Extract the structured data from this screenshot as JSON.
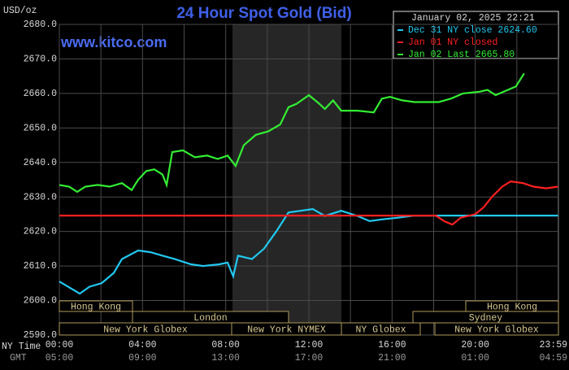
{
  "chart_data": {
    "type": "line",
    "title": "24 Hour Spot Gold (Bid)",
    "y_unit": "USD/oz",
    "timestamp": "January 02, 2025 22:21",
    "watermark": "www.kitco.com",
    "x_axis_label": "NY Time",
    "x2_axis_label": "GMT",
    "xlim": [
      0,
      24
    ],
    "ylim": [
      2590,
      2680
    ],
    "yticks": [
      {
        "value": 2590,
        "label": "2590.0"
      },
      {
        "value": 2600,
        "label": "2600.0"
      },
      {
        "value": 2610,
        "label": "2610.0"
      },
      {
        "value": 2620,
        "label": "2620.0"
      },
      {
        "value": 2630,
        "label": "2630.0"
      },
      {
        "value": 2640,
        "label": "2640.0"
      },
      {
        "value": 2650,
        "label": "2650.0"
      },
      {
        "value": 2660,
        "label": "2660.0"
      },
      {
        "value": 2670,
        "label": "2670.0"
      },
      {
        "value": 2680,
        "label": "2680.0"
      }
    ],
    "xticks": [
      {
        "value": 0,
        "label": "00:00"
      },
      {
        "value": 4,
        "label": "04:00"
      },
      {
        "value": 8,
        "label": "08:00"
      },
      {
        "value": 12,
        "label": "12:00"
      },
      {
        "value": 16,
        "label": "16:00"
      },
      {
        "value": 20,
        "label": "20:00"
      },
      {
        "value": 23.98,
        "label": "23:59"
      }
    ],
    "x2ticks": [
      {
        "value": 0,
        "label": "05:00"
      },
      {
        "value": 4,
        "label": "09:00"
      },
      {
        "value": 8,
        "label": "13:00"
      },
      {
        "value": 12,
        "label": "17:00"
      },
      {
        "value": 16,
        "label": "21:00"
      },
      {
        "value": 20,
        "label": "01:00"
      },
      {
        "value": 23.98,
        "label": "04:59"
      }
    ],
    "xminor": [
      2,
      6,
      10,
      14,
      18,
      22
    ],
    "grid": true,
    "sessions": [
      [
        "Hong Kong",
        "Hong Kong"
      ],
      [
        "London",
        "Sydney"
      ],
      [
        "New York Globex",
        "New York NYMEX",
        "NY Globex",
        "New York Globex"
      ]
    ],
    "series": [
      {
        "name": "Dec 31 NY close 2624.60",
        "color": "#22c8f0",
        "x": [
          0,
          0.98,
          1.45,
          2.03,
          2.62,
          3.01,
          3.79,
          4.38,
          4.96,
          5.55,
          6.33,
          6.91,
          7.7,
          8.09,
          8.36,
          8.59,
          9.26,
          9.84,
          10.43,
          11.02,
          11.6,
          12.19,
          12.77,
          13.55,
          14.34,
          14.92,
          15.51,
          16.29,
          17.07,
          23.98
        ],
        "values": [
          2605.5,
          2602,
          2604,
          2605,
          2608,
          2612,
          2614.5,
          2614,
          2613,
          2612,
          2610.5,
          2610,
          2610.5,
          2611,
          2607,
          2613,
          2612,
          2615,
          2620,
          2625.5,
          2626,
          2626.5,
          2624.5,
          2626,
          2624.5,
          2623,
          2623.5,
          2624,
          2624.6,
          2624.6
        ]
      },
      {
        "name": "Jan 01 NY closed",
        "color": "#ff2020",
        "x": [
          0,
          18.1,
          18.5,
          18.9,
          19.3,
          20.0,
          20.4,
          20.8,
          21.3,
          21.7,
          22.3,
          22.8,
          23.4,
          23.98
        ],
        "values": [
          2624.6,
          2624.6,
          2623,
          2622,
          2624,
          2625,
          2627,
          2630,
          2633,
          2634.5,
          2634,
          2633,
          2632.5,
          2633
        ]
      },
      {
        "name": "Jan 02 Last 2665.80",
        "color": "#33ee33",
        "x": [
          0,
          0.47,
          0.86,
          1.25,
          1.84,
          2.42,
          3.01,
          3.48,
          3.79,
          4.18,
          4.57,
          4.96,
          5.16,
          5.43,
          5.94,
          6.52,
          7.11,
          7.62,
          8.09,
          8.48,
          8.87,
          9.45,
          10.04,
          10.62,
          11.02,
          11.41,
          12.0,
          12.5,
          12.77,
          13.16,
          13.55,
          14.34,
          15.12,
          15.51,
          15.9,
          16.48,
          17.07,
          18.24,
          18.83,
          19.41,
          20.2,
          20.59,
          20.98,
          21.56,
          21.95,
          22.35
        ],
        "values": [
          2633.5,
          2633,
          2631.5,
          2633,
          2633.5,
          2633,
          2634,
          2632,
          2635,
          2637.5,
          2638,
          2636.5,
          2633.5,
          2643,
          2643.5,
          2641.5,
          2642,
          2641,
          2642,
          2639,
          2645,
          2648,
          2649,
          2651,
          2656,
          2657,
          2659.5,
          2657,
          2655.5,
          2658,
          2655,
          2655,
          2654.5,
          2658.5,
          2659,
          2658,
          2657.5,
          2657.5,
          2658.5,
          2660,
          2660.5,
          2661,
          2659.5,
          2661,
          2662,
          2665.8
        ]
      }
    ]
  }
}
